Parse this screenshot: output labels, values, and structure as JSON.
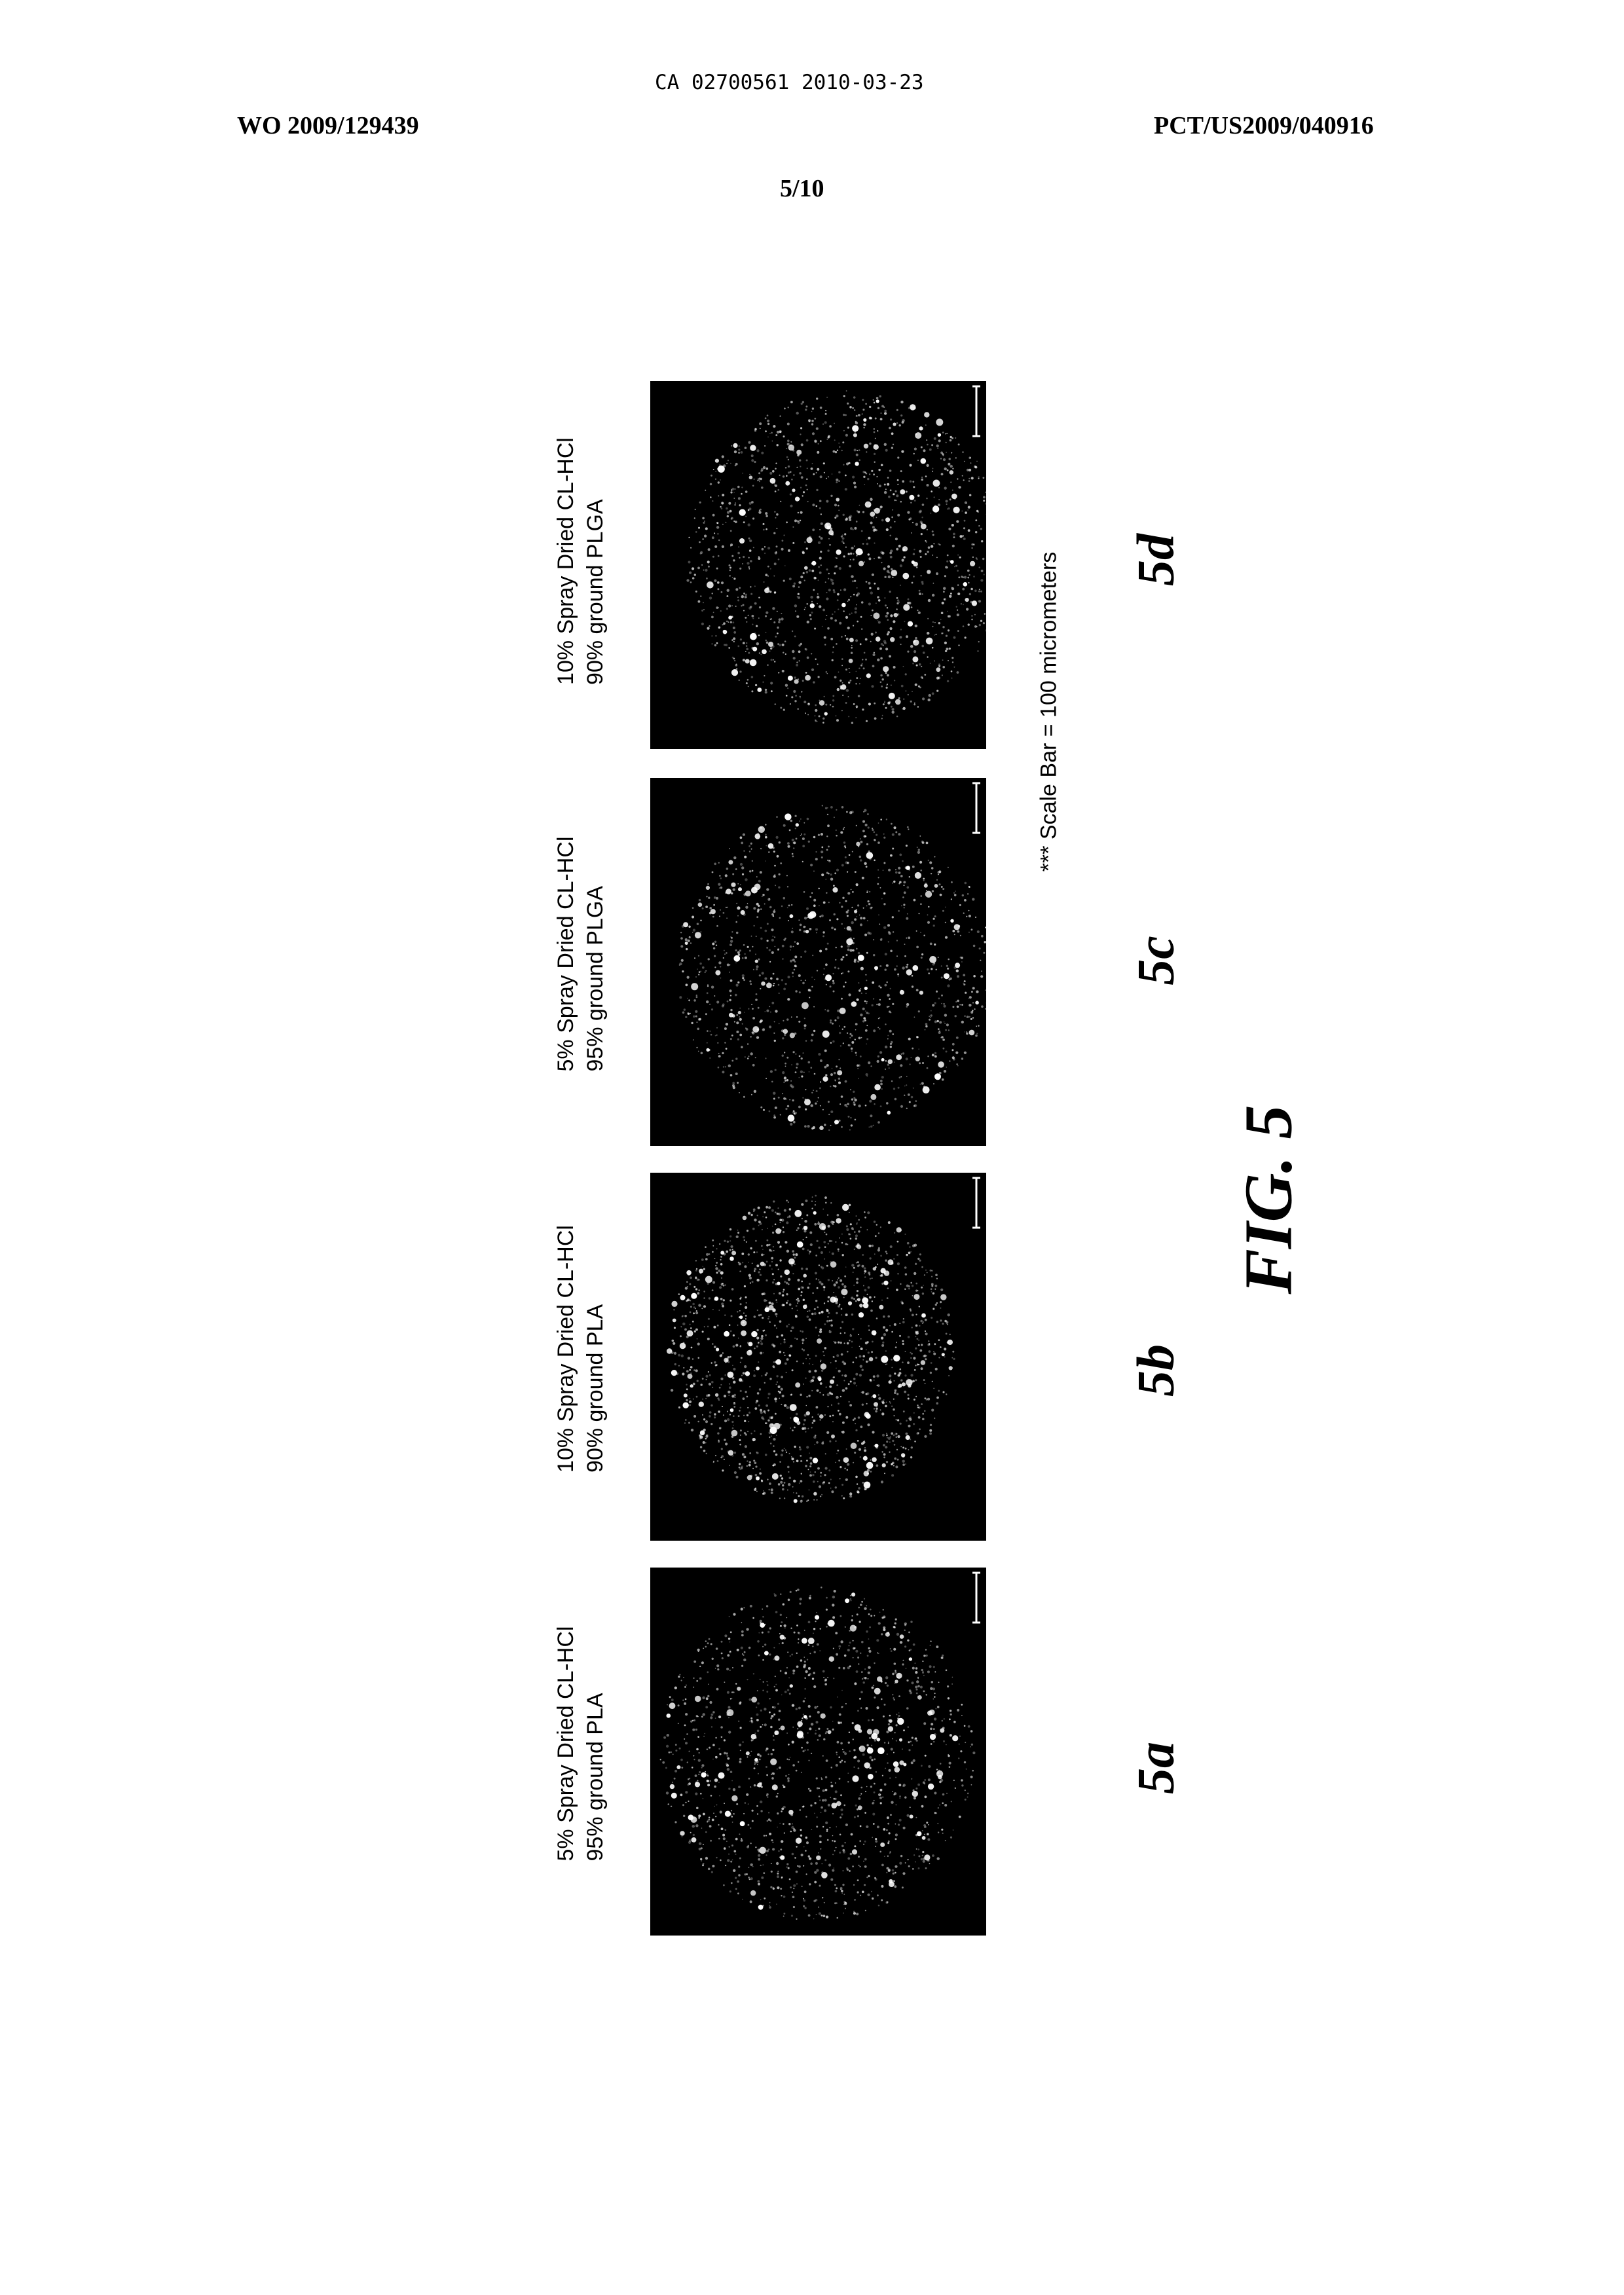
{
  "header": {
    "ca_number": "CA 02700561 2010-03-23",
    "wo_number": "WO 2009/129439",
    "pct_number": "PCT/US2009/040916",
    "sheet": "5/10"
  },
  "panels": [
    {
      "id": "5a",
      "label": "5a",
      "caption_line1": "5% Spray Dried CL-HCl",
      "caption_line2": "95% ground PLA"
    },
    {
      "id": "5b",
      "label": "5b",
      "caption_line1": "10% Spray Dried CL-HCl",
      "caption_line2": "90% ground PLA"
    },
    {
      "id": "5c",
      "label": "5c",
      "caption_line1": "5% Spray Dried CL-HCl",
      "caption_line2": "95% ground PLGA"
    },
    {
      "id": "5d",
      "label": "5d",
      "caption_line1": "10% Spray Dried CL-HCl",
      "caption_line2": "90% ground PLGA"
    }
  ],
  "scale_note": "*** Scale Bar = 100 micrometers",
  "figure_title": "FIG. 5",
  "colors": {
    "panel_background": "#000000",
    "speckle": "#ffffff"
  }
}
